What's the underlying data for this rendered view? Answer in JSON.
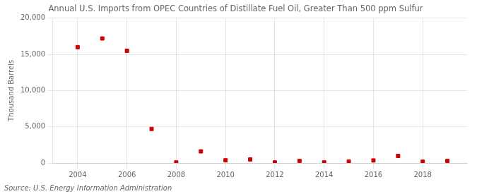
{
  "chart_data": {
    "type": "scatter",
    "title": "Annual U.S. Imports from OPEC Countries of Distillate Fuel Oil, Greater Than 500 ppm Sulfur",
    "y_label": "Thousand Barrels",
    "source": "Source: U.S. Energy Information Administration",
    "x": [
      2004,
      2005,
      2006,
      2007,
      2008,
      2009,
      2010,
      2011,
      2012,
      2013,
      2014,
      2015,
      2016,
      2017,
      2018,
      2019
    ],
    "values": [
      16000,
      17200,
      15500,
      4700,
      80,
      1600,
      370,
      480,
      80,
      270,
      80,
      180,
      350,
      970,
      170,
      270
    ],
    "color": "#cc0000",
    "marker": "square",
    "xlim": [
      2003.0,
      2019.8
    ],
    "xticks": [
      2004,
      2006,
      2008,
      2010,
      2012,
      2014,
      2016,
      2018
    ],
    "ylim": [
      0,
      20000
    ],
    "yticks": [
      0,
      {
        "value": 5000,
        "label": "5,000"
      },
      {
        "value": 10000,
        "label": "10,000"
      },
      {
        "value": 15000,
        "label": "15,000"
      },
      {
        "value": 20000,
        "label": "20,000"
      }
    ],
    "grid": true
  }
}
